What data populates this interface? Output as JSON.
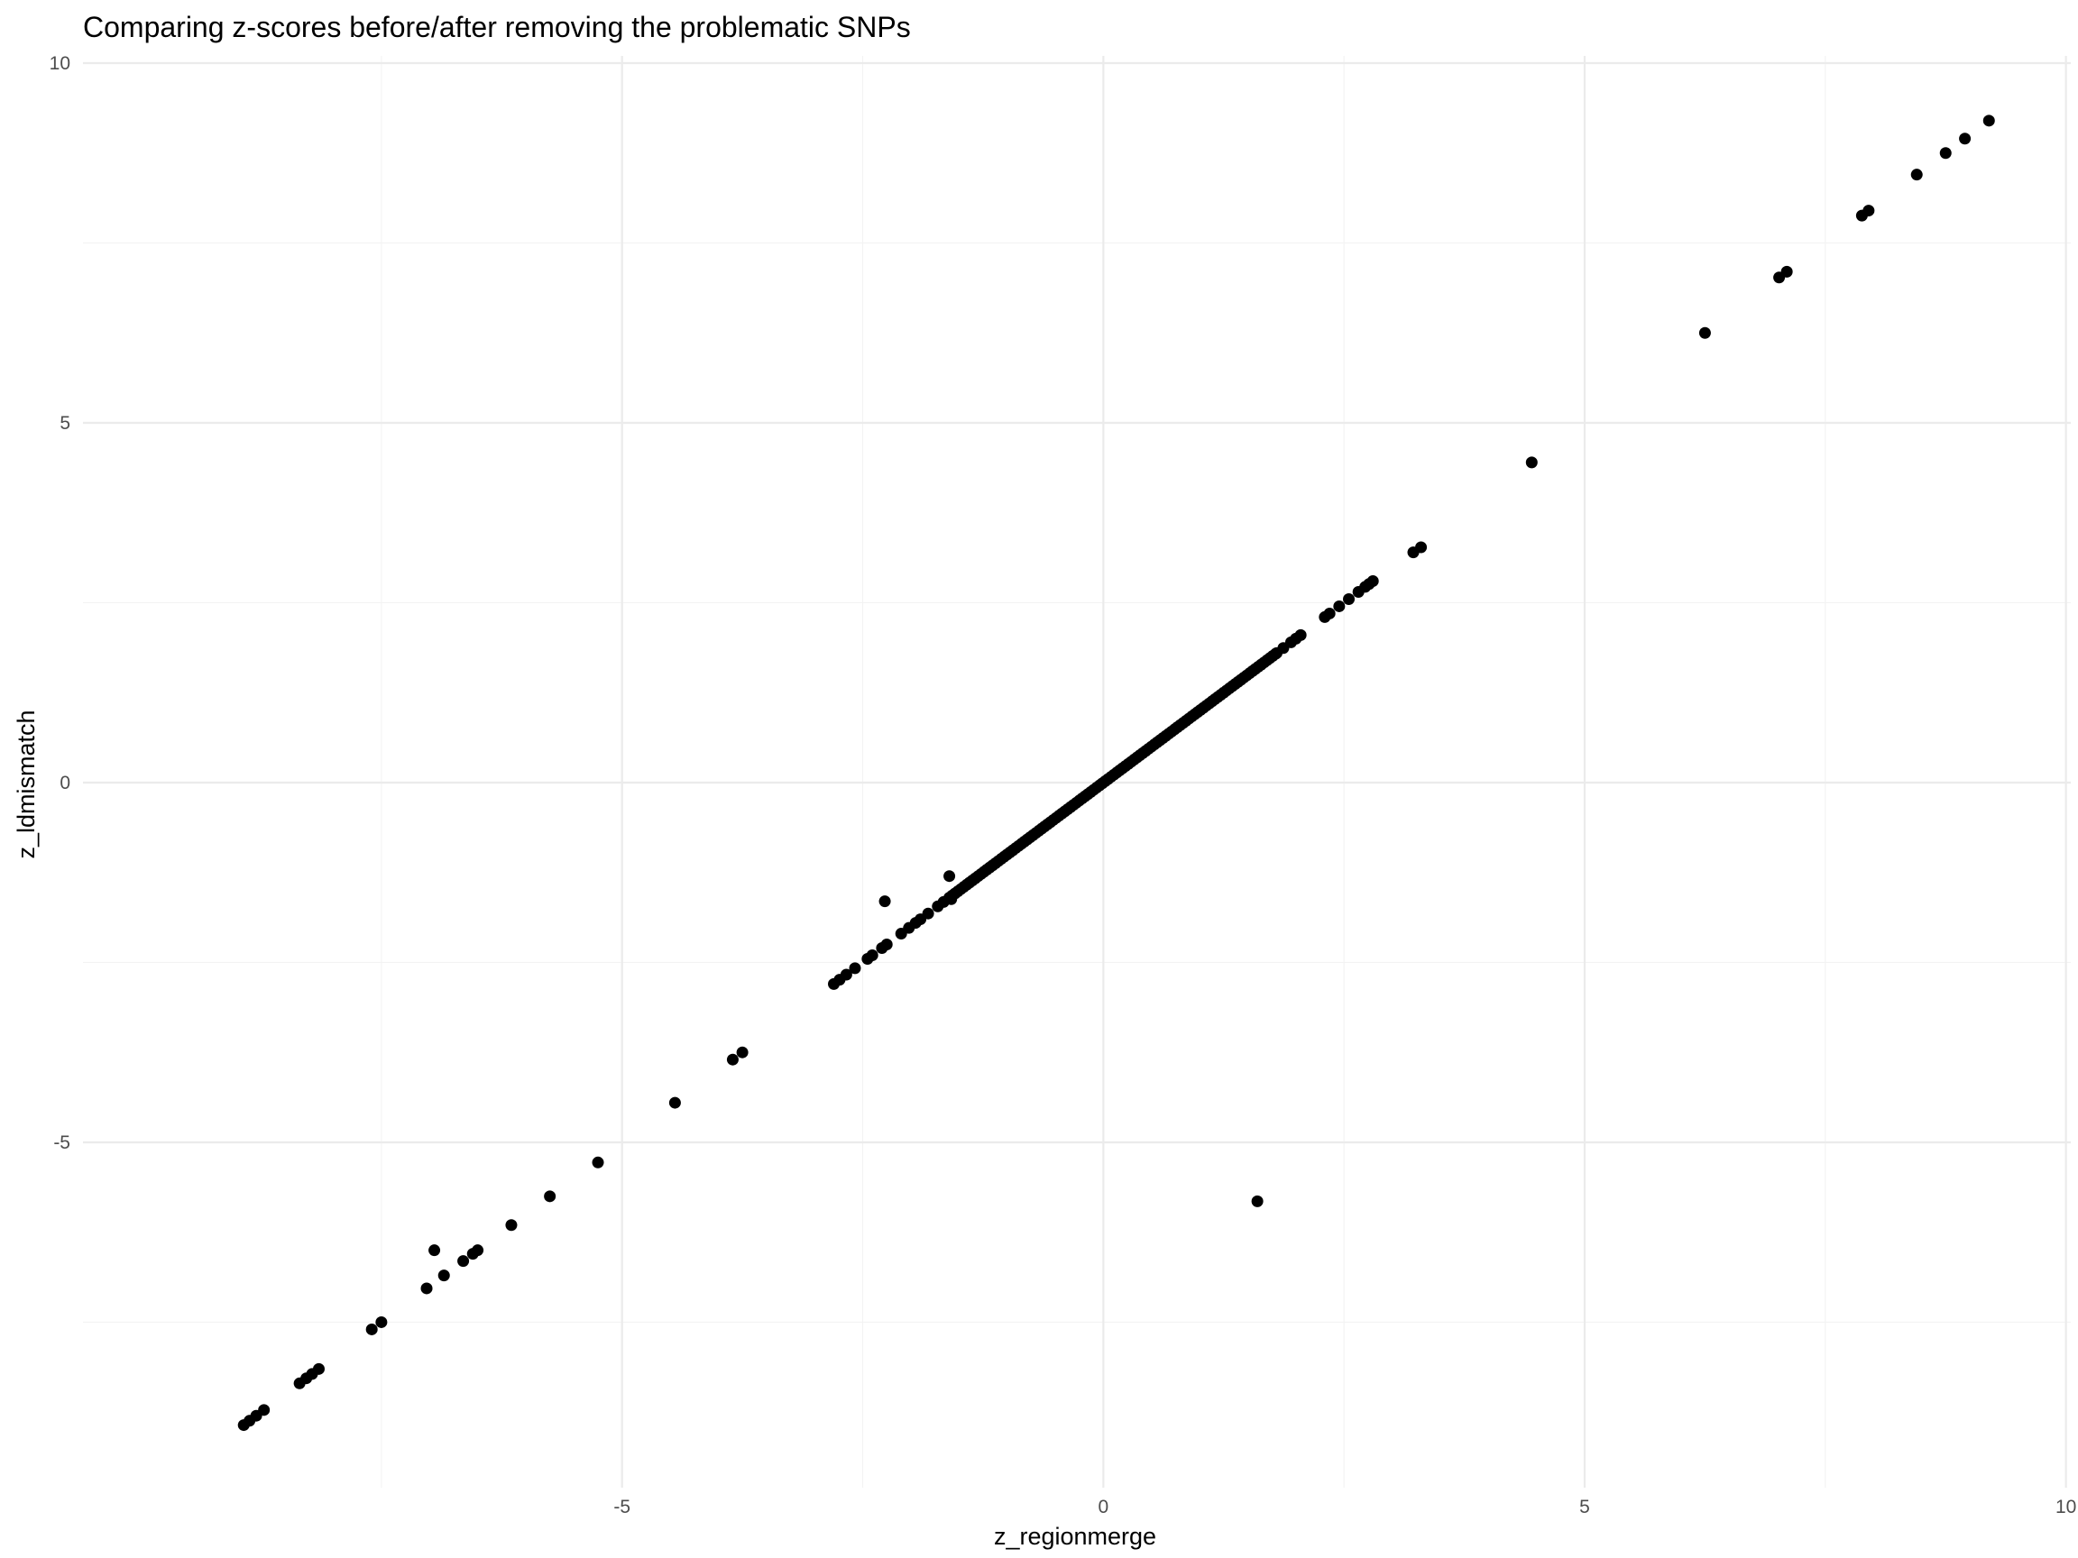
{
  "chart_data": {
    "type": "scatter",
    "title": "Comparing z-scores before/after removing the problematic SNPs",
    "xlabel": "z_regionmerge",
    "ylabel": "z_ldmismatch",
    "xlim": [
      -10.6,
      10.05
    ],
    "ylim": [
      -9.8,
      10.1
    ],
    "x_ticks": [
      -5,
      0,
      5,
      10
    ],
    "y_ticks": [
      -5,
      0,
      5,
      10
    ],
    "x_tick_labels": [
      "-5",
      "0",
      "5",
      "10"
    ],
    "y_tick_labels": [
      "-5",
      "0",
      "5",
      "10"
    ],
    "grid": true,
    "marker_color": "#000000",
    "points": [
      {
        "x": 9.2,
        "y": 9.2
      },
      {
        "x": 8.95,
        "y": 8.95
      },
      {
        "x": 8.75,
        "y": 8.75
      },
      {
        "x": 8.45,
        "y": 8.45
      },
      {
        "x": 7.95,
        "y": 7.95
      },
      {
        "x": 7.88,
        "y": 7.88
      },
      {
        "x": 7.1,
        "y": 7.1
      },
      {
        "x": 7.02,
        "y": 7.02
      },
      {
        "x": 6.25,
        "y": 6.25
      },
      {
        "x": 4.45,
        "y": 4.45
      },
      {
        "x": 3.3,
        "y": 3.27
      },
      {
        "x": 3.22,
        "y": 3.2
      },
      {
        "x": 2.8,
        "y": 2.8
      },
      {
        "x": 2.76,
        "y": 2.76
      },
      {
        "x": 2.72,
        "y": 2.72
      },
      {
        "x": 2.65,
        "y": 2.65
      },
      {
        "x": 2.55,
        "y": 2.55
      },
      {
        "x": 2.45,
        "y": 2.45
      },
      {
        "x": 2.35,
        "y": 2.35
      },
      {
        "x": 2.3,
        "y": 2.3
      },
      {
        "x": 2.05,
        "y": 2.05
      },
      {
        "x": 2.0,
        "y": 2.0
      },
      {
        "x": 1.95,
        "y": 1.95
      },
      {
        "x": 1.87,
        "y": 1.87
      },
      {
        "x": 1.8,
        "y": 1.8
      },
      {
        "x": 1.6,
        "y": -5.82
      },
      {
        "x": -1.6,
        "y": -1.3
      },
      {
        "x": -2.27,
        "y": -1.65
      },
      {
        "x": -2.8,
        "y": -2.8
      },
      {
        "x": -2.74,
        "y": -2.74
      },
      {
        "x": -2.67,
        "y": -2.67
      },
      {
        "x": -2.58,
        "y": -2.58
      },
      {
        "x": -2.45,
        "y": -2.45
      },
      {
        "x": -2.4,
        "y": -2.4
      },
      {
        "x": -2.3,
        "y": -2.3
      },
      {
        "x": -2.25,
        "y": -2.25
      },
      {
        "x": -2.1,
        "y": -2.1
      },
      {
        "x": -2.02,
        "y": -2.02
      },
      {
        "x": -1.95,
        "y": -1.95
      },
      {
        "x": -1.9,
        "y": -1.9
      },
      {
        "x": -1.82,
        "y": -1.82
      },
      {
        "x": -1.72,
        "y": -1.72
      },
      {
        "x": -1.66,
        "y": -1.66
      },
      {
        "x": -1.58,
        "y": -1.62
      },
      {
        "x": -3.75,
        "y": -3.75
      },
      {
        "x": -3.85,
        "y": -3.85
      },
      {
        "x": -4.45,
        "y": -4.45
      },
      {
        "x": -5.25,
        "y": -5.28
      },
      {
        "x": -5.75,
        "y": -5.75
      },
      {
        "x": -6.15,
        "y": -6.15
      },
      {
        "x": -6.5,
        "y": -6.5
      },
      {
        "x": -6.55,
        "y": -6.55
      },
      {
        "x": -6.65,
        "y": -6.65
      },
      {
        "x": -6.85,
        "y": -6.85
      },
      {
        "x": -6.95,
        "y": -6.5
      },
      {
        "x": -7.03,
        "y": -7.03
      },
      {
        "x": -7.5,
        "y": -7.5
      },
      {
        "x": -7.6,
        "y": -7.6
      },
      {
        "x": -8.15,
        "y": -8.15
      },
      {
        "x": -8.22,
        "y": -8.22
      },
      {
        "x": -8.28,
        "y": -8.28
      },
      {
        "x": -8.35,
        "y": -8.35
      },
      {
        "x": -8.72,
        "y": -8.72
      },
      {
        "x": -8.8,
        "y": -8.8
      },
      {
        "x": -8.87,
        "y": -8.87
      },
      {
        "x": -8.93,
        "y": -8.93
      }
    ],
    "dense_diagonal": {
      "from": -1.6,
      "to": 1.8,
      "step": 0.03
    }
  }
}
